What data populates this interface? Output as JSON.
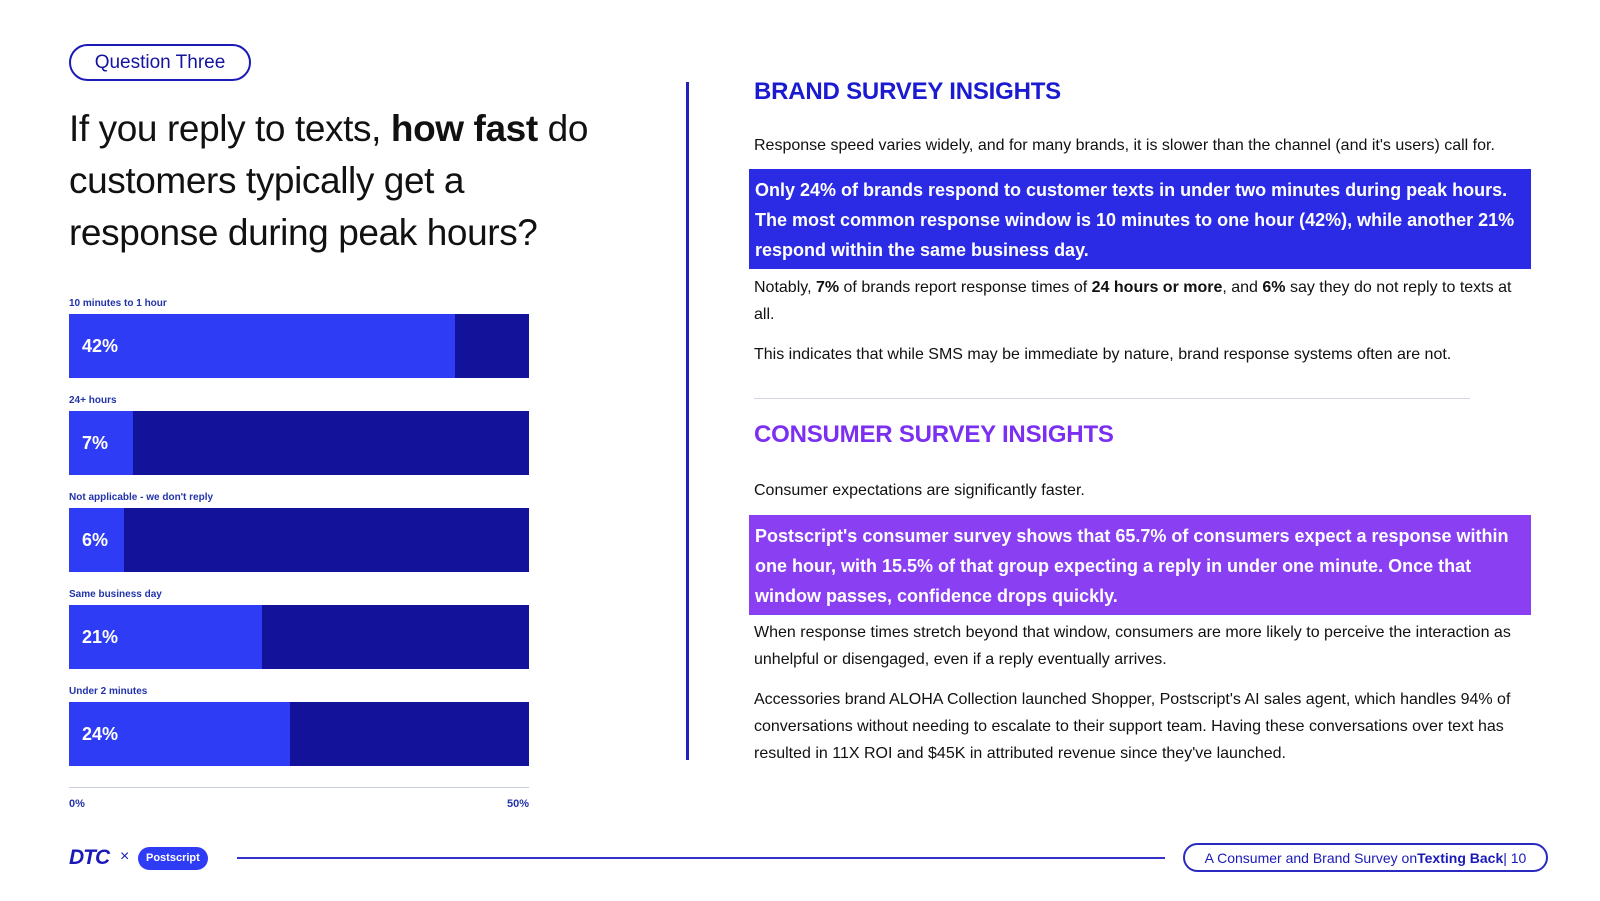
{
  "header": {
    "tag": "Question Three",
    "question_part1": "If you reply to texts, ",
    "question_bold": "how fast",
    "question_part2": " do customers typically get a response during peak hours?"
  },
  "chart_data": {
    "type": "bar",
    "orientation": "horizontal",
    "categories": [
      "10 minutes to 1 hour",
      "24+ hours",
      "Not applicable - we don't reply",
      "Same business day",
      "Under 2 minutes"
    ],
    "values": [
      42,
      7,
      6,
      21,
      24
    ],
    "value_labels": [
      "42%",
      "7%",
      "6%",
      "21%",
      "24%"
    ],
    "xlim": [
      0,
      50
    ],
    "tick_labels": [
      "0%",
      "50%"
    ],
    "colors": {
      "fill": "#2f3cf5",
      "track": "#12129a"
    }
  },
  "brand": {
    "heading": "BRAND SURVEY INSIGHTS",
    "heading_color": "#1a1ad0",
    "intro": "Response speed varies widely, and for many brands, it is slower than the channel (and it's users) call for.",
    "highlight": "Only 24% of brands respond to customer texts in under two minutes during peak hours. The most common response window is 10 minutes to one hour (42%), while another 21% respond within the same business day.",
    "highlight_color": "#2b2be6",
    "notably": {
      "t1": "Notably, ",
      "b1": "7%",
      "t2": " of brands report response times of ",
      "b2": "24 hours or more",
      "t3": ", and ",
      "b3": "6%",
      "t4": " say they do not reply to texts at all."
    },
    "closing": "This indicates that while SMS may be immediate by nature, brand response systems often  are not."
  },
  "consumer": {
    "heading": "CONSUMER SURVEY INSIGHTS",
    "heading_color": "#7b2ff0",
    "intro": "Consumer expectations are significantly faster.",
    "highlight": "Postscript's consumer survey shows that 65.7% of consumers expect a response within one hour, with 15.5% of that group expecting a reply in under one minute. Once that window passes, confidence drops quickly.",
    "highlight_color": "#8a3ff2",
    "para1": "When response times stretch beyond that window, consumers are more likely to perceive the interaction as unhelpful or disengaged, even if a reply eventually arrives.",
    "para2": "Accessories brand ALOHA Collection launched Shopper, Postscript's AI sales agent, which handles 94% of conversations without needing to escalate to their support team. Having these conversations over text has resulted in 11X ROI and $45K in attributed revenue since they've launched."
  },
  "footer": {
    "logo_dtc": "DTC",
    "x": "×",
    "logo_postscript": "Postscript",
    "text1": "A Consumer and Brand Survey on ",
    "text_bold": "Texting Back",
    "text2": " | 10"
  }
}
